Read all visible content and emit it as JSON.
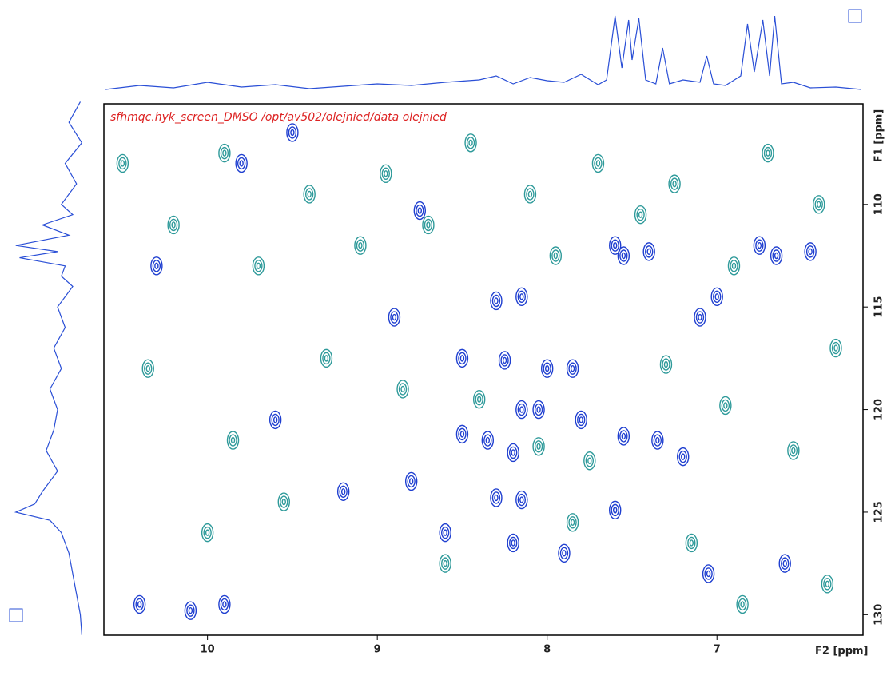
{
  "chart_data": {
    "type": "contour",
    "title": "sfhmqc.hyk_screen_DMSO /opt/av502/olejnied/data olejnied",
    "x_label": "F2 [ppm]",
    "y_label": "F1 [ppm]",
    "xlim": [
      10.61,
      6.14
    ],
    "ylim": [
      105.1,
      131.0
    ],
    "xticks": [
      10,
      9,
      8,
      7
    ],
    "yticks": [
      110,
      115,
      120,
      125,
      130
    ],
    "series": [
      {
        "color": "#1f3fd0",
        "x": [
          7.6,
          7.55,
          7.4,
          6.75,
          6.65,
          8.5,
          8.25,
          8.0,
          7.85,
          8.05,
          8.15,
          7.8,
          8.5,
          8.35,
          8.2,
          7.55,
          7.35,
          7.2,
          8.8,
          8.3,
          8.15,
          7.6,
          8.3,
          8.15,
          7.0,
          7.1,
          8.75,
          10.4,
          10.1,
          9.9,
          8.6,
          8.2,
          7.9,
          9.8,
          9.5,
          6.45,
          6.6,
          7.05,
          9.2,
          9.6,
          10.3,
          8.9
        ],
        "y": [
          112,
          112.5,
          112.3,
          112,
          112.5,
          117.5,
          117.6,
          118,
          118,
          120,
          120,
          120.5,
          121.2,
          121.5,
          122.1,
          121.3,
          121.5,
          122.3,
          123.5,
          124.3,
          124.4,
          124.9,
          114.7,
          114.5,
          114.5,
          115.5,
          110.3,
          129.5,
          129.8,
          129.5,
          126,
          126.5,
          127,
          108,
          106.5,
          112.3,
          127.5,
          128,
          124,
          120.5,
          113,
          115.5
        ]
      },
      {
        "color": "#2e9a9a",
        "x": [
          10.5,
          10.2,
          9.9,
          9.7,
          9.4,
          9.1,
          8.95,
          8.7,
          8.45,
          8.1,
          7.95,
          7.7,
          7.45,
          7.25,
          6.9,
          6.7,
          6.4,
          6.3,
          10.35,
          9.85,
          9.3,
          8.85,
          8.4,
          8.05,
          7.75,
          7.3,
          6.95,
          6.55,
          10.0,
          9.55,
          8.6,
          7.85,
          7.15,
          6.85,
          6.35
        ],
        "y": [
          108,
          111,
          107.5,
          113,
          109.5,
          112,
          108.5,
          111,
          107,
          109.5,
          112.5,
          108,
          110.5,
          109,
          113,
          107.5,
          110,
          117,
          118,
          121.5,
          117.5,
          119,
          119.5,
          121.8,
          122.5,
          117.8,
          119.8,
          122,
          126,
          124.5,
          127.5,
          125.5,
          126.5,
          129.5,
          128.5
        ]
      }
    ],
    "top_projection": {
      "x": [
        10.6,
        10.4,
        10.2,
        10.0,
        9.8,
        9.6,
        9.4,
        9.2,
        9.0,
        8.8,
        8.6,
        8.4,
        8.3,
        8.2,
        8.1,
        8.0,
        7.9,
        7.8,
        7.7,
        7.65,
        7.6,
        7.56,
        7.52,
        7.5,
        7.46,
        7.42,
        7.36,
        7.32,
        7.28,
        7.2,
        7.1,
        7.06,
        7.02,
        6.95,
        6.86,
        6.82,
        6.78,
        6.73,
        6.69,
        6.66,
        6.62,
        6.55,
        6.45,
        6.3,
        6.15
      ],
      "values": [
        3,
        8,
        5,
        12,
        6,
        9,
        4,
        7,
        10,
        8,
        12,
        15,
        20,
        10,
        18,
        14,
        12,
        22,
        9,
        15,
        95,
        30,
        90,
        40,
        92,
        15,
        10,
        55,
        10,
        15,
        12,
        45,
        10,
        8,
        20,
        85,
        25,
        90,
        20,
        95,
        10,
        12,
        5,
        6,
        3
      ]
    },
    "left_projection": {
      "y": [
        105,
        106,
        107,
        108,
        109,
        110,
        110.5,
        111,
        111.5,
        112,
        112.3,
        112.6,
        113,
        113.5,
        114,
        115,
        116,
        117,
        118,
        119,
        120,
        121,
        122,
        123,
        124,
        124.6,
        125,
        125.4,
        126,
        127,
        128,
        129,
        130,
        131
      ],
      "values": [
        10,
        25,
        8,
        30,
        15,
        35,
        20,
        60,
        25,
        95,
        40,
        90,
        30,
        35,
        20,
        40,
        30,
        45,
        35,
        50,
        40,
        45,
        55,
        40,
        60,
        70,
        95,
        50,
        35,
        25,
        20,
        15,
        10,
        8
      ]
    }
  }
}
